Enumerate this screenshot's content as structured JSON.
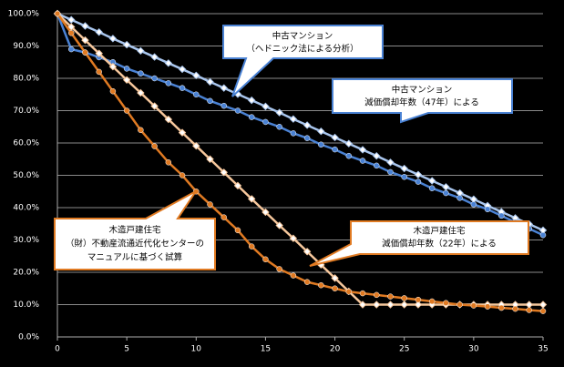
{
  "chart_data": {
    "type": "line",
    "x": [
      0,
      1,
      2,
      3,
      4,
      5,
      6,
      7,
      8,
      9,
      10,
      11,
      12,
      13,
      14,
      15,
      16,
      17,
      18,
      19,
      20,
      21,
      22,
      23,
      24,
      25,
      26,
      27,
      28,
      29,
      30,
      31,
      32,
      33,
      34,
      35
    ],
    "series": [
      {
        "color": "#a9c6ee",
        "marker": "diamond",
        "values": [
          100,
          98.1,
          96.2,
          94.3,
          92.3,
          90.4,
          88.5,
          86.6,
          84.7,
          82.8,
          80.9,
          78.9,
          77.0,
          75.1,
          73.2,
          71.3,
          69.4,
          67.4,
          65.5,
          63.6,
          61.7,
          59.8,
          57.9,
          56.0,
          54.0,
          52.1,
          50.2,
          48.3,
          46.4,
          44.5,
          42.6,
          40.6,
          38.7,
          36.8,
          34.9,
          33.0
        ]
      },
      {
        "color": "#4a82d4",
        "marker": "circle",
        "values": [
          100,
          89,
          88,
          86.5,
          85,
          83,
          81.5,
          80,
          78.5,
          77,
          75,
          73,
          71.5,
          70,
          68,
          66.5,
          65,
          63,
          61.5,
          59.5,
          58,
          56,
          54.5,
          53,
          51,
          49.5,
          48,
          46,
          44.5,
          43,
          41,
          39.5,
          37.5,
          35.5,
          33.5,
          31.5
        ]
      },
      {
        "color": "#f6c79c",
        "marker": "diamond",
        "values": [
          100,
          95.9,
          91.8,
          87.7,
          83.6,
          79.5,
          75.5,
          71.4,
          67.3,
          63.2,
          59.1,
          55.0,
          50.9,
          46.8,
          42.7,
          38.6,
          34.5,
          30.5,
          26.4,
          22.3,
          18.2,
          14.1,
          10,
          10,
          10,
          10,
          10,
          10,
          10,
          10,
          10,
          10,
          10,
          10,
          10,
          10
        ]
      },
      {
        "color": "#e07a22",
        "marker": "circle",
        "values": [
          100,
          94,
          88,
          82,
          76,
          70,
          64,
          59,
          54,
          50,
          45,
          41,
          37,
          33,
          28,
          24,
          21,
          19,
          17,
          16,
          15,
          14,
          13.5,
          13,
          12.5,
          12,
          11.5,
          11,
          10.5,
          10,
          9.7,
          9.4,
          9,
          8.7,
          8.3,
          8
        ]
      }
    ],
    "xlim": [
      0,
      35
    ],
    "xticks": [
      0,
      5,
      10,
      15,
      20,
      25,
      30,
      35
    ],
    "ylim": [
      0,
      100
    ],
    "yticks": [
      {
        "value": 0,
        "label": "0.0%"
      },
      {
        "value": 10,
        "label": "10.0%"
      },
      {
        "value": 20,
        "label": "20.0%"
      },
      {
        "value": 30,
        "label": "30.0%"
      },
      {
        "value": 40,
        "label": "40.0%"
      },
      {
        "value": 50,
        "label": "50.0%"
      },
      {
        "value": 60,
        "label": "60.0%"
      },
      {
        "value": 70,
        "label": "70.0%"
      },
      {
        "value": 80,
        "label": "80.0%"
      },
      {
        "value": 90,
        "label": "90.0%"
      },
      {
        "value": 100,
        "label": "100.0%"
      }
    ],
    "grid": true,
    "annotations": [
      [
        "中古マンション",
        "（ヘドニック法による分析）"
      ],
      [
        "中古マンション",
        "減価償却年数（47年）による"
      ],
      [
        "木造戸建住宅",
        "（財）不動産流通近代化センターの",
        "マニュアルに基づく試算"
      ],
      [
        "木造戸建住宅",
        "減価償却年数（22年）による"
      ]
    ]
  }
}
